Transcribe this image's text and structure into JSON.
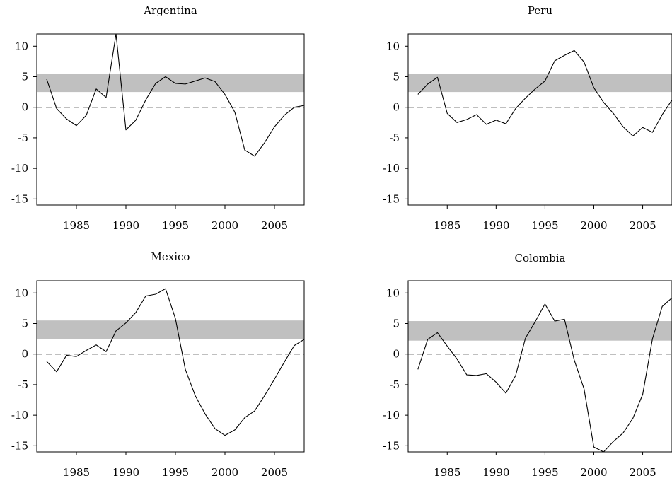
{
  "chart_data": [
    {
      "type": "line",
      "title": "Argentina",
      "xlim": [
        1981,
        2008
      ],
      "ylim": [
        -16,
        12
      ],
      "xticks": [
        1985,
        1990,
        1995,
        2000,
        2005
      ],
      "yticks": [
        10,
        5,
        0,
        -5,
        -10,
        -15
      ],
      "band": [
        2.5,
        5.5
      ],
      "reference_line": 0,
      "x": [
        1982,
        1983,
        1984,
        1985,
        1986,
        1987,
        1988,
        1989,
        1990,
        1991,
        1992,
        1993,
        1994,
        1995,
        1996,
        1997,
        1998,
        1999,
        2000,
        2001,
        2002,
        2003,
        2004,
        2005,
        2006,
        2007,
        2008
      ],
      "values": [
        4.6,
        -0.2,
        -1.9,
        -3.0,
        -1.3,
        3.0,
        1.6,
        12.0,
        -3.7,
        -2.1,
        1.2,
        3.9,
        5.0,
        3.9,
        3.8,
        4.3,
        4.8,
        4.2,
        2.1,
        -0.8,
        -7.0,
        -8.0,
        -5.8,
        -3.2,
        -1.3,
        0.0,
        0.3
      ],
      "grid": false
    },
    {
      "type": "line",
      "title": "Peru",
      "xlim": [
        1981,
        2008
      ],
      "ylim": [
        -16,
        12
      ],
      "xticks": [
        1985,
        1990,
        1995,
        2000,
        2005
      ],
      "yticks": [
        10,
        5,
        0,
        -5,
        -10,
        -15
      ],
      "band": [
        2.5,
        5.5
      ],
      "reference_line": 0,
      "x": [
        1982,
        1983,
        1984,
        1985,
        1986,
        1987,
        1988,
        1989,
        1990,
        1991,
        1992,
        1993,
        1994,
        1995,
        1996,
        1997,
        1998,
        1999,
        2000,
        2001,
        2002,
        2003,
        2004,
        2005,
        2006,
        2007,
        2008
      ],
      "values": [
        2.1,
        3.8,
        4.9,
        -1.0,
        -2.5,
        -2.0,
        -1.2,
        -2.8,
        -2.1,
        -2.7,
        -0.2,
        1.5,
        3.0,
        4.3,
        7.6,
        8.5,
        9.3,
        7.4,
        3.2,
        0.8,
        -1.0,
        -3.2,
        -4.7,
        -3.3,
        -4.1,
        -1.2,
        1.2
      ],
      "grid": false
    },
    {
      "type": "line",
      "title": "Mexico",
      "xlim": [
        1981,
        2008
      ],
      "ylim": [
        -16,
        12
      ],
      "xticks": [
        1985,
        1990,
        1995,
        2000,
        2005
      ],
      "yticks": [
        10,
        5,
        0,
        -5,
        -10,
        -15
      ],
      "band": [
        2.5,
        5.5
      ],
      "reference_line": 0,
      "x": [
        1982,
        1983,
        1984,
        1985,
        1986,
        1987,
        1988,
        1989,
        1990,
        1991,
        1992,
        1993,
        1994,
        1995,
        1996,
        1997,
        1998,
        1999,
        2000,
        2001,
        2002,
        2003,
        2004,
        2005,
        2006,
        2007,
        2008
      ],
      "values": [
        -1.2,
        -2.9,
        -0.2,
        -0.4,
        0.6,
        1.5,
        0.4,
        3.8,
        5.1,
        6.8,
        9.5,
        9.8,
        10.7,
        5.8,
        -2.5,
        -6.8,
        -9.8,
        -12.2,
        -13.3,
        -12.4,
        -10.4,
        -9.3,
        -6.8,
        -4.1,
        -1.3,
        1.4,
        2.4
      ],
      "grid": false
    },
    {
      "type": "line",
      "title": "Colombia",
      "xlim": [
        1981,
        2008
      ],
      "ylim": [
        -16,
        12
      ],
      "xticks": [
        1985,
        1990,
        1995,
        2000,
        2005
      ],
      "yticks": [
        10,
        5,
        0,
        -5,
        -10,
        -15
      ],
      "band": [
        2.2,
        5.4
      ],
      "reference_line": 0,
      "x": [
        1982,
        1983,
        1984,
        1985,
        1986,
        1987,
        1988,
        1989,
        1990,
        1991,
        1992,
        1993,
        1994,
        1995,
        1996,
        1997,
        1998,
        1999,
        2000,
        2001,
        2002,
        2003,
        2004,
        2005,
        2006,
        2007,
        2008
      ],
      "values": [
        -2.5,
        2.4,
        3.5,
        1.3,
        -0.8,
        -3.4,
        -3.5,
        -3.2,
        -4.6,
        -6.4,
        -3.5,
        2.6,
        5.3,
        8.2,
        5.4,
        5.7,
        -1.0,
        -5.7,
        -15.2,
        -16.0,
        -14.3,
        -12.9,
        -10.5,
        -6.6,
        2.5,
        7.8,
        9.2
      ],
      "grid": false
    }
  ]
}
